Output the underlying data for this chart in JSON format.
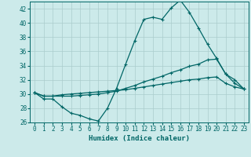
{
  "xlabel": "Humidex (Indice chaleur)",
  "bg_color": "#cceaea",
  "grid_color": "#aacccc",
  "line_color": "#006666",
  "xlim": [
    -0.5,
    23.5
  ],
  "ylim": [
    26,
    43
  ],
  "yticks": [
    26,
    28,
    30,
    32,
    34,
    36,
    38,
    40,
    42
  ],
  "xticks": [
    0,
    1,
    2,
    3,
    4,
    5,
    6,
    7,
    8,
    9,
    10,
    11,
    12,
    13,
    14,
    15,
    16,
    17,
    18,
    19,
    20,
    21,
    22,
    23
  ],
  "line1_x": [
    0,
    1,
    2,
    3,
    4,
    5,
    6,
    7,
    8,
    9,
    10,
    11,
    12,
    13,
    14,
    15,
    16,
    17,
    18,
    19,
    20,
    21,
    22,
    23
  ],
  "line1_y": [
    30.2,
    29.3,
    29.3,
    28.2,
    27.3,
    27.0,
    26.5,
    26.2,
    28.0,
    30.8,
    34.2,
    37.5,
    40.5,
    40.8,
    40.5,
    42.1,
    43.2,
    41.5,
    39.3,
    37.0,
    35.0,
    32.8,
    32.0,
    30.7
  ],
  "line2_x": [
    0,
    1,
    2,
    3,
    4,
    5,
    6,
    7,
    8,
    9,
    10,
    11,
    12,
    13,
    14,
    15,
    16,
    17,
    18,
    19,
    20,
    21,
    22,
    23
  ],
  "line2_y": [
    30.2,
    29.7,
    29.7,
    29.7,
    29.7,
    29.8,
    29.9,
    30.0,
    30.2,
    30.4,
    30.8,
    31.2,
    31.7,
    32.1,
    32.5,
    33.0,
    33.4,
    33.9,
    34.2,
    34.8,
    34.9,
    32.8,
    31.5,
    30.7
  ],
  "line3_x": [
    0,
    1,
    2,
    3,
    4,
    5,
    6,
    7,
    8,
    9,
    10,
    11,
    12,
    13,
    14,
    15,
    16,
    17,
    18,
    19,
    20,
    21,
    22,
    23
  ],
  "line3_y": [
    30.2,
    29.7,
    29.7,
    29.9,
    30.0,
    30.1,
    30.2,
    30.3,
    30.4,
    30.5,
    30.6,
    30.8,
    31.0,
    31.2,
    31.4,
    31.6,
    31.8,
    32.0,
    32.1,
    32.3,
    32.4,
    31.5,
    31.0,
    30.7
  ],
  "marker": "+",
  "markersize": 3,
  "linewidth": 0.9,
  "tick_fontsize": 5.5,
  "label_fontsize": 6.5
}
